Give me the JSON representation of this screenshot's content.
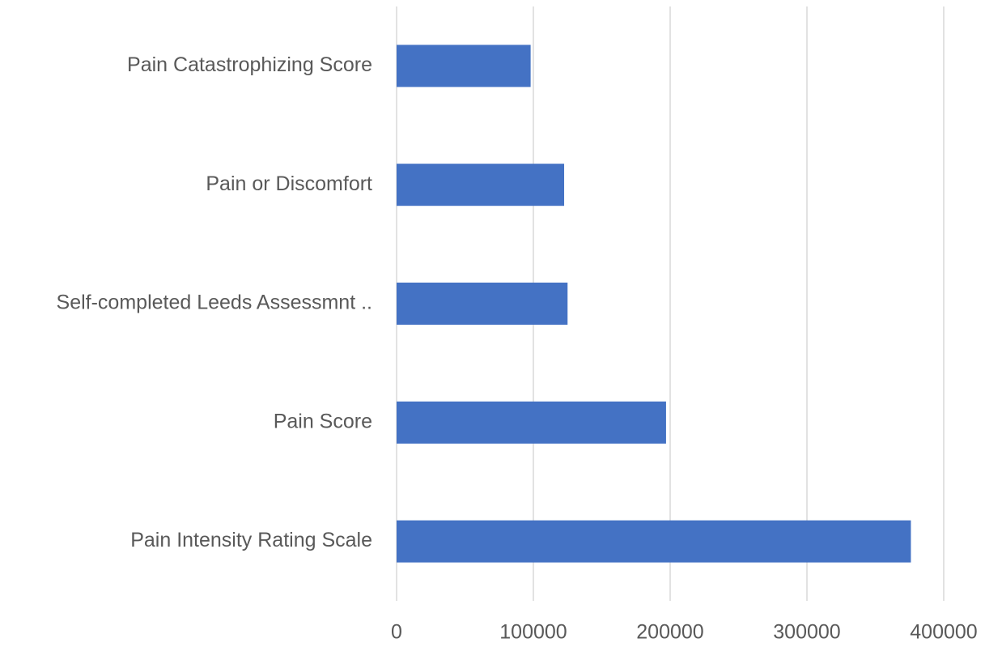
{
  "chart_data": {
    "type": "barh",
    "categories": [
      "Pain Catastrophizing Score",
      "Pain or Discomfort",
      "Self-completed Leeds Assessmnt ..",
      "Pain Score",
      "Pain Intensity Rating Scale"
    ],
    "values": [
      98000,
      122500,
      125000,
      197000,
      376000
    ],
    "color": "#4472c4",
    "xlim": [
      0,
      400000
    ],
    "xticks": [
      0,
      100000,
      200000,
      300000,
      400000
    ],
    "grid": true
  }
}
